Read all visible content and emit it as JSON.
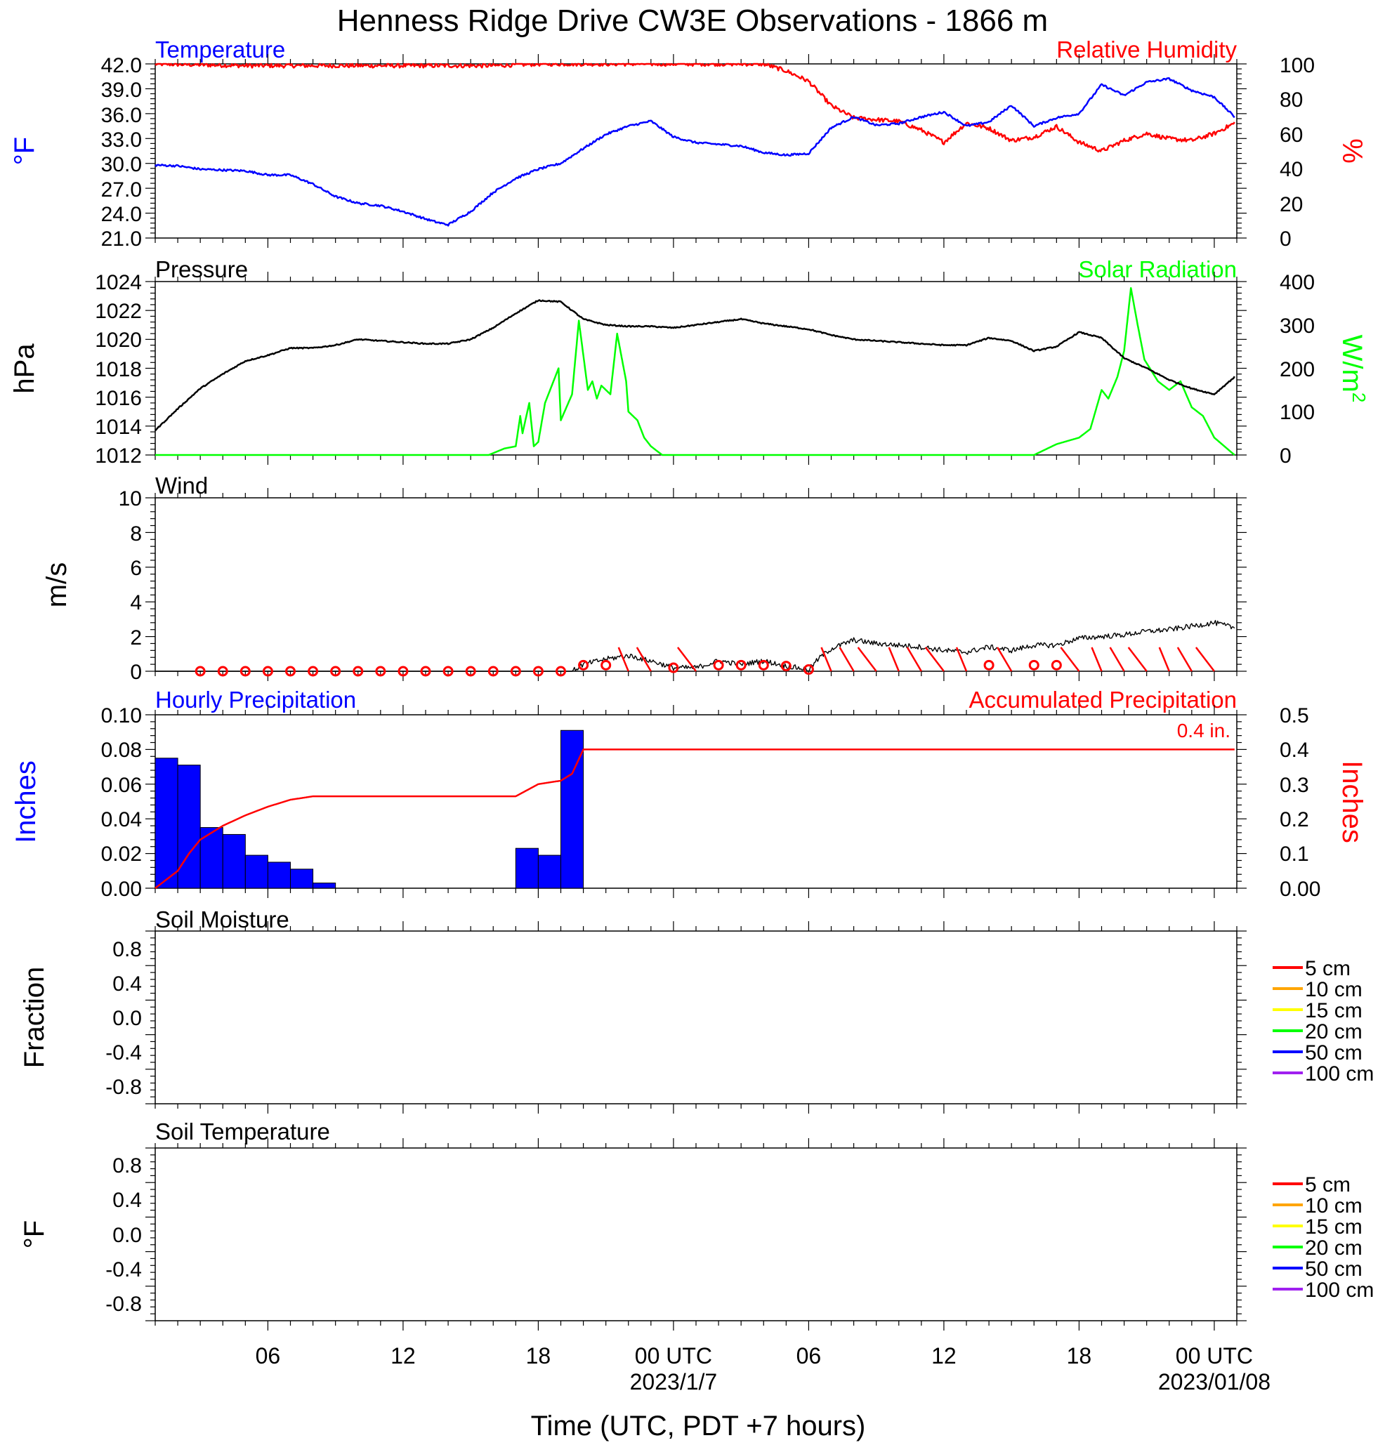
{
  "title": "Henness Ridge Drive CW3E Observations - 1866 m",
  "xaxis": {
    "title": "Time (UTC, PDT +7 hours)",
    "ticks": [
      {
        "hour": 6,
        "label": "06"
      },
      {
        "hour": 12,
        "label": "12"
      },
      {
        "hour": 18,
        "label": "18"
      },
      {
        "hour": 24,
        "label": "00 UTC"
      },
      {
        "hour": 30,
        "label": "06"
      },
      {
        "hour": 36,
        "label": "12"
      },
      {
        "hour": 42,
        "label": "18"
      },
      {
        "hour": 48,
        "label": "00 UTC"
      }
    ],
    "dates": [
      {
        "hour": 24,
        "label": "2023/1/7"
      },
      {
        "hour": 48,
        "label": "2023/01/08"
      }
    ],
    "range_hours": [
      1,
      49
    ]
  },
  "chart_data": [
    {
      "type": "line",
      "panel": "temperature_humidity",
      "left_title": "Temperature",
      "right_title": "Relative Humidity",
      "ylabel_left": "°F",
      "ylabel_right": "%",
      "ylim_left": [
        21,
        42
      ],
      "ylim_right": [
        0,
        100
      ],
      "yticks_left": [
        "42.0",
        "39.0",
        "36.0",
        "33.0",
        "30.0",
        "27.0",
        "24.0",
        "21.0"
      ],
      "yticks_right": [
        "100",
        "80",
        "60",
        "40",
        "20",
        "0"
      ],
      "colors": {
        "left": "#0000ff",
        "right": "#ff0000"
      },
      "series": [
        {
          "axis": "left",
          "color": "#0000ff",
          "noise": 0.12,
          "x": [
            1,
            2,
            3,
            4,
            5,
            6,
            7,
            8,
            9,
            10,
            11,
            12,
            13,
            13.5,
            14,
            15,
            16,
            17,
            18,
            19,
            20,
            21,
            22,
            23,
            24,
            25,
            26,
            27,
            28,
            29,
            30,
            31,
            32,
            33,
            34,
            35,
            36,
            37,
            38,
            39,
            40,
            41,
            42,
            43,
            44,
            45,
            46,
            47,
            48,
            48.9
          ],
          "y": [
            29.8,
            29.7,
            29.3,
            29.2,
            29.1,
            28.6,
            28.6,
            27.5,
            26.0,
            25.2,
            24.9,
            24.2,
            23.3,
            22.9,
            22.6,
            24.2,
            26.5,
            28.2,
            29.3,
            30.0,
            31.8,
            33.5,
            34.5,
            35.1,
            33.2,
            32.5,
            32.3,
            32.1,
            31.3,
            31.0,
            31.2,
            34.3,
            35.6,
            34.6,
            34.8,
            35.6,
            36.2,
            34.5,
            35.0,
            37.0,
            34.5,
            35.5,
            36.0,
            39.5,
            38.2,
            39.8,
            40.2,
            38.8,
            38.0,
            35.6
          ]
        },
        {
          "axis": "right",
          "color": "#ff0000",
          "noise": 1.2,
          "x": [
            1,
            5,
            10,
            13,
            16,
            18,
            21,
            24,
            28,
            29,
            30,
            31,
            32,
            33,
            34,
            35,
            36,
            37,
            38,
            39,
            40,
            41,
            42,
            43,
            44,
            45,
            46,
            47,
            48,
            48.9
          ],
          "y": [
            100,
            99,
            99,
            99,
            99,
            100,
            100,
            100,
            100,
            96,
            90,
            76,
            69,
            68,
            67,
            62,
            55,
            66,
            63,
            56,
            58,
            64,
            55,
            50,
            56,
            60,
            57,
            56,
            60,
            66
          ]
        }
      ]
    },
    {
      "type": "line",
      "panel": "pressure_solar",
      "left_title": "Pressure",
      "right_title": "Solar Radiation",
      "ylabel_left": "hPa",
      "ylabel_right": "W/m",
      "ylabel_right_sup": "2",
      "ylim_left": [
        1012,
        1024
      ],
      "ylim_right": [
        0,
        400
      ],
      "yticks_left": [
        "1024",
        "1022",
        "1020",
        "1018",
        "1016",
        "1014",
        "1012"
      ],
      "yticks_right": [
        "400",
        "300",
        "200",
        "100",
        "0"
      ],
      "colors": {
        "left": "#000000",
        "right": "#00ff00"
      },
      "series": [
        {
          "axis": "left",
          "color": "#000000",
          "noise": 0.04,
          "x": [
            1,
            2,
            3,
            4,
            5,
            6,
            7,
            8,
            9,
            10,
            11,
            12,
            13,
            14,
            15,
            16,
            17,
            18,
            19,
            20,
            21,
            22,
            23,
            24,
            25,
            26,
            27,
            28,
            29,
            30,
            31,
            32,
            33,
            34,
            35,
            36,
            37,
            38,
            39,
            40,
            41,
            42,
            43,
            44,
            45,
            46,
            47,
            48,
            48.9
          ],
          "y": [
            1013.7,
            1015.2,
            1016.6,
            1017.6,
            1018.5,
            1018.9,
            1019.4,
            1019.4,
            1019.6,
            1020.0,
            1019.9,
            1019.8,
            1019.7,
            1019.7,
            1020.0,
            1020.8,
            1021.8,
            1022.7,
            1022.6,
            1021.4,
            1021.0,
            1020.9,
            1020.9,
            1020.8,
            1021.0,
            1021.2,
            1021.4,
            1021.1,
            1020.9,
            1020.7,
            1020.3,
            1020.0,
            1019.9,
            1019.8,
            1019.7,
            1019.6,
            1019.6,
            1020.1,
            1019.9,
            1019.2,
            1019.5,
            1020.5,
            1020.1,
            1018.7,
            1018.0,
            1017.2,
            1016.6,
            1016.2,
            1017.4
          ]
        },
        {
          "axis": "right",
          "color": "#00ff00",
          "noise": 0,
          "x": [
            1,
            15.8,
            16.5,
            17,
            17.2,
            17.3,
            17.6,
            17.8,
            18.0,
            18.3,
            18.9,
            19.0,
            19.5,
            19.8,
            20.2,
            20.4,
            20.6,
            20.8,
            21.2,
            21.5,
            21.9,
            22.0,
            22.4,
            22.7,
            23.0,
            23.5,
            24.0,
            25,
            30,
            40,
            41,
            42,
            42.5,
            43,
            43.3,
            43.7,
            44,
            44.3,
            44.6,
            44.9,
            45.5,
            46,
            46.5,
            47,
            47.5,
            48,
            48.9
          ],
          "y": [
            0,
            0,
            15,
            20,
            90,
            50,
            120,
            20,
            30,
            120,
            200,
            80,
            140,
            310,
            150,
            170,
            130,
            160,
            140,
            280,
            170,
            100,
            80,
            40,
            20,
            0,
            0,
            0,
            0,
            0,
            25,
            40,
            60,
            150,
            130,
            180,
            240,
            385,
            300,
            220,
            170,
            150,
            170,
            110,
            90,
            40,
            0
          ]
        }
      ]
    },
    {
      "type": "line",
      "panel": "wind",
      "left_title": "Wind",
      "ylabel_left": "m/s",
      "ylim_left": [
        0,
        10
      ],
      "yticks_left": [
        "10",
        "8",
        "6",
        "4",
        "2",
        "0"
      ],
      "colors": {
        "speed": "#000000",
        "barb": "#ff0000"
      },
      "series": [
        {
          "axis": "left",
          "color": "#000000",
          "noise": 0.15,
          "x": [
            1,
            19.5,
            20,
            21,
            22,
            23,
            24,
            25,
            26,
            27,
            28,
            29,
            30,
            30.5,
            31,
            32,
            33,
            34,
            35,
            36,
            37,
            38,
            39,
            40,
            41,
            42,
            43,
            44,
            45,
            46,
            47,
            48,
            48.9
          ],
          "y": [
            0,
            0,
            0.4,
            0.7,
            0.9,
            0.6,
            0.2,
            0.2,
            0.6,
            0.4,
            0.6,
            0.3,
            0.1,
            0.8,
            1.3,
            1.8,
            1.6,
            1.5,
            1.4,
            1.2,
            1.1,
            1.4,
            1.2,
            1.5,
            1.5,
            1.9,
            2.0,
            2.1,
            2.3,
            2.4,
            2.6,
            2.8,
            2.5
          ]
        }
      ],
      "calm_hours": [
        3,
        4,
        5,
        6,
        7,
        8,
        9,
        10,
        11,
        12,
        13,
        14,
        15,
        16,
        17,
        18,
        19,
        20,
        21,
        24,
        26,
        27,
        28,
        29,
        30,
        38,
        40,
        41
      ],
      "barb_hours": [
        22,
        23,
        25,
        31,
        32,
        33,
        34,
        35,
        36,
        37,
        39,
        42,
        43,
        44,
        45,
        46,
        47,
        48
      ]
    },
    {
      "type": "bar",
      "panel": "precipitation",
      "left_title": "Hourly Precipitation",
      "right_title": "Accumulated Precipitation",
      "annotation": "0.4 in.",
      "ylabel_left": "Inches",
      "ylabel_right": "Inches",
      "ylim_left": [
        0,
        0.1
      ],
      "ylim_right": [
        0,
        0.5
      ],
      "yticks_left": [
        "0.10",
        "0.08",
        "0.06",
        "0.04",
        "0.02",
        "0.00"
      ],
      "yticks_right": [
        "0.5",
        "0.4",
        "0.3",
        "0.2",
        "0.1",
        "0.00"
      ],
      "colors": {
        "bars": "#0000ff",
        "accum": "#ff0000"
      },
      "bars": {
        "hour_start": [
          1,
          2,
          3,
          4,
          5,
          6,
          7,
          8,
          17,
          18,
          19
        ],
        "values": [
          0.075,
          0.071,
          0.035,
          0.031,
          0.019,
          0.015,
          0.011,
          0.003,
          0.023,
          0.019,
          0.091
        ]
      },
      "accumulated": {
        "x": [
          1,
          1.5,
          2,
          2.5,
          3,
          4,
          5,
          6,
          7,
          8,
          9,
          16,
          17,
          18,
          18.5,
          19,
          19.5,
          20,
          48.9
        ],
        "y": [
          0,
          0.025,
          0.05,
          0.1,
          0.14,
          0.18,
          0.21,
          0.235,
          0.255,
          0.265,
          0.265,
          0.265,
          0.265,
          0.3,
          0.305,
          0.31,
          0.33,
          0.4,
          0.4
        ]
      }
    },
    {
      "type": "line",
      "panel": "soil_moisture",
      "left_title": "Soil Moisture",
      "ylabel_left": "Fraction",
      "ylim_left": [
        -1,
        1
      ],
      "yticks_left": [
        "0.8",
        "0.4",
        "0.0",
        "-0.4",
        "-0.8"
      ],
      "legend": [
        {
          "label": "5 cm",
          "color": "#ff0000"
        },
        {
          "label": "10 cm",
          "color": "#ffa500"
        },
        {
          "label": "15 cm",
          "color": "#ffff00"
        },
        {
          "label": "20 cm",
          "color": "#00ff00"
        },
        {
          "label": "50 cm",
          "color": "#0000ff"
        },
        {
          "label": "100 cm",
          "color": "#a020f0"
        }
      ]
    },
    {
      "type": "line",
      "panel": "soil_temperature",
      "left_title": "Soil Temperature",
      "ylabel_left": "°F",
      "ylim_left": [
        -1,
        1
      ],
      "yticks_left": [
        "0.8",
        "0.4",
        "0.0",
        "-0.4",
        "-0.8"
      ],
      "legend": [
        {
          "label": "5 cm",
          "color": "#ff0000"
        },
        {
          "label": "10 cm",
          "color": "#ffa500"
        },
        {
          "label": "15 cm",
          "color": "#ffff00"
        },
        {
          "label": "20 cm",
          "color": "#00ff00"
        },
        {
          "label": "50 cm",
          "color": "#0000ff"
        },
        {
          "label": "100 cm",
          "color": "#a020f0"
        }
      ]
    }
  ]
}
